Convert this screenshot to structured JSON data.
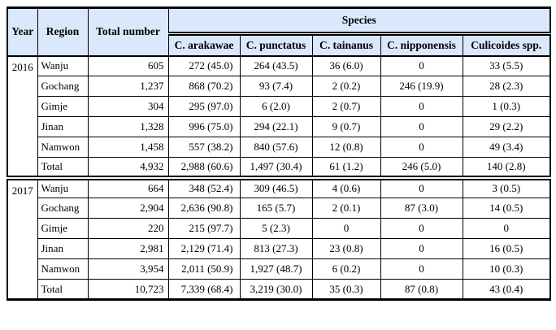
{
  "table": {
    "header": {
      "year": "Year",
      "region": "Region",
      "total_number": "Total number",
      "species_group": "Species",
      "species": [
        "C. arakawae",
        "C. punctatus",
        "C. tainanus",
        "C. nipponensis",
        "Culicoides spp."
      ]
    },
    "sections": [
      {
        "year": "2016",
        "rows": [
          {
            "region": "Wanju",
            "total": "605",
            "values": [
              "272 (45.0)",
              "264 (43.5)",
              "36 (6.0)",
              "0",
              "33 (5.5)"
            ]
          },
          {
            "region": "Gochang",
            "total": "1,237",
            "values": [
              "868 (70.2)",
              "93 (7.4)",
              "2 (0.2)",
              "246 (19.9)",
              "28 (2.3)"
            ]
          },
          {
            "region": "Gimje",
            "total": "304",
            "values": [
              "295 (97.0)",
              "6 (2.0)",
              "2 (0.7)",
              "0",
              "1 (0.3)"
            ]
          },
          {
            "region": "Jinan",
            "total": "1,328",
            "values": [
              "996 (75.0)",
              "294 (22.1)",
              "9 (0.7)",
              "0",
              "29 (2.2)"
            ]
          },
          {
            "region": "Namwon",
            "total": "1,458",
            "values": [
              "557 (38.2)",
              "840 (57.6)",
              "12 (0.8)",
              "0",
              "49 (3.4)"
            ]
          },
          {
            "region": "Total",
            "total": "4,932",
            "values": [
              "2,988 (60.6)",
              "1,497 (30.4)",
              "61 (1.2)",
              "246 (5.0)",
              "140 (2.8)"
            ]
          }
        ]
      },
      {
        "year": "2017",
        "rows": [
          {
            "region": "Wanju",
            "total": "664",
            "values": [
              "348 (52.4)",
              "309 (46.5)",
              "4 (0.6)",
              "0",
              "3 (0.5)"
            ]
          },
          {
            "region": "Gochang",
            "total": "2,904",
            "values": [
              "2,636 (90.8)",
              "165 (5.7)",
              "2 (0.1)",
              "87 (3.0)",
              "14 (0.5)"
            ]
          },
          {
            "region": "Gimje",
            "total": "220",
            "values": [
              "215 (97.7)",
              "5 (2.3)",
              "0",
              "0",
              "0"
            ]
          },
          {
            "region": "Jinan",
            "total": "2,981",
            "values": [
              "2,129 (71.4)",
              "813 (27.3)",
              "23 (0.8)",
              "0",
              "16 (0.5)"
            ]
          },
          {
            "region": "Namwon",
            "total": "3,954",
            "values": [
              "2,011 (50.9)",
              "1,927 (48.7)",
              "6 (0.2)",
              "0",
              "10 (0.3)"
            ]
          },
          {
            "region": "Total",
            "total": "10,723",
            "values": [
              "7,339 (68.4)",
              "3,219 (30.0)",
              "35 (0.3)",
              "87 (0.8)",
              "43 (0.4)"
            ]
          }
        ]
      }
    ],
    "colors": {
      "header_bg": "#d9e8fa",
      "border": "#000000"
    }
  }
}
